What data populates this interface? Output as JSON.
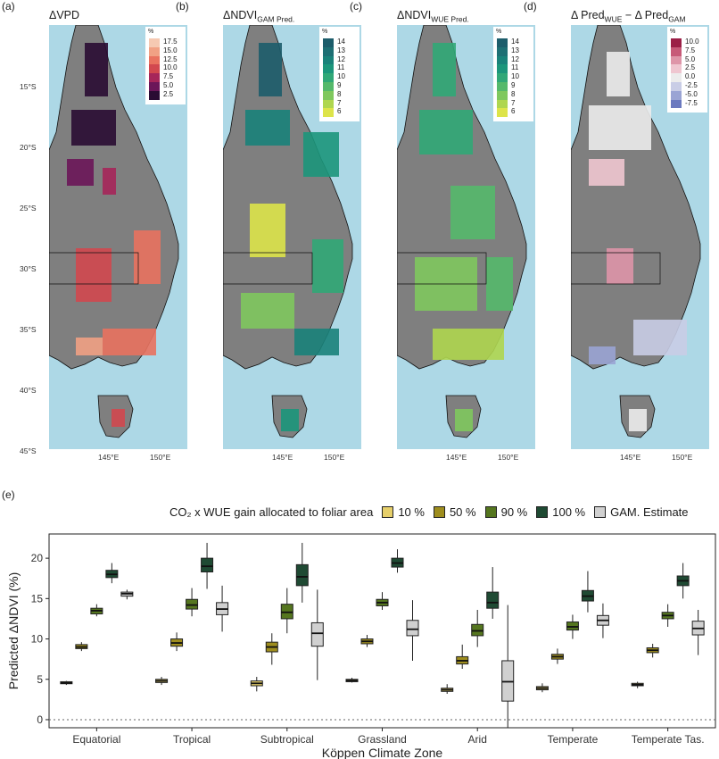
{
  "maps": [
    {
      "panel_label": "(a)",
      "title": "ΔVPD",
      "title_sub": "",
      "legend_unit": "%",
      "legend_labels": [
        "17.5",
        "15.0",
        "12.5",
        "10.0",
        "7.5",
        "5.0",
        "2.5"
      ],
      "legend_colors": [
        "#f6c9b2",
        "#f1a184",
        "#e9725f",
        "#d2484f",
        "#a6265a",
        "#6b1659",
        "#2a0c33"
      ],
      "lat_ticks": [
        "15°S",
        "20°S",
        "25°S",
        "30°S",
        "35°S",
        "40°S",
        "45°S"
      ],
      "lon_ticks": [
        "145°E",
        "150°E"
      ]
    },
    {
      "panel_label": "(b)",
      "title": "ΔNDVI",
      "title_sub": "GAM Pred.",
      "legend_unit": "%",
      "legend_labels": [
        "14",
        "13",
        "12",
        "11",
        "10",
        "9",
        "8",
        "7",
        "6"
      ],
      "legend_colors": [
        "#1d5d6b",
        "#1e6f74",
        "#1a827a",
        "#1c967b",
        "#31a877",
        "#55b96b",
        "#7fc85e",
        "#afd64f",
        "#dde44a"
      ],
      "lon_ticks": [
        "145°E",
        "150°E"
      ]
    },
    {
      "panel_label": "(c)",
      "title": "ΔNDVI",
      "title_sub": "WUE Pred.",
      "legend_unit": "%",
      "legend_labels": [
        "14",
        "13",
        "12",
        "11",
        "10",
        "9",
        "8",
        "7",
        "6"
      ],
      "legend_colors": [
        "#1d5d6b",
        "#1e6f74",
        "#1a827a",
        "#1c967b",
        "#31a877",
        "#55b96b",
        "#7fc85e",
        "#afd64f",
        "#dde44a"
      ],
      "lon_ticks": [
        "145°E",
        "150°E"
      ]
    },
    {
      "panel_label": "(d)",
      "title": "Δ Pred",
      "title_sub": "WUE",
      "title_mid": " − Δ Pred",
      "title_sub2": "GAM",
      "legend_unit": "%",
      "legend_labels": [
        "10.0",
        "7.5",
        "5.0",
        "2.5",
        "0.0",
        "-2.5",
        "-5.0",
        "-7.5"
      ],
      "legend_colors": [
        "#9b1f46",
        "#c75a78",
        "#de95a8",
        "#efc6d0",
        "#ececec",
        "#c9cde6",
        "#9aa4d4",
        "#6b79bf"
      ],
      "lon_ticks": [
        "145°E",
        "150°E"
      ]
    }
  ],
  "colors": {
    "ocean": "#add8e6",
    "land_gray": "#7f7f7f",
    "pct_10": "#e6cf6a",
    "pct_50": "#9e8d1e",
    "pct_90": "#55761f",
    "pct_100": "#1f4a33",
    "gam": "#d0d0d0"
  },
  "bottom_panel": {
    "panel_label": "(e)",
    "legend_title": "CO₂ x WUE gain allocated to foliar area",
    "legend_items": [
      {
        "label": "10 %",
        "color": "#e6cf6a"
      },
      {
        "label": "50 %",
        "color": "#9e8d1e"
      },
      {
        "label": "90 %",
        "color": "#55761f"
      },
      {
        "label": "100 %",
        "color": "#1f4a33"
      },
      {
        "label": "GAM. Estimate",
        "color": "#d0d0d0"
      }
    ]
  },
  "chart_data": {
    "type": "boxplot",
    "categories": [
      "Equatorial",
      "Tropical",
      "Subtropical",
      "Grassland",
      "Arid",
      "Temperate",
      "Temperate Tas."
    ],
    "xlabel": "Köppen Climate Zone",
    "ylabel": "Predicted ΔNDVI (%)",
    "ylim": [
      -1,
      23
    ],
    "yticks": [
      0,
      5,
      10,
      15,
      20
    ],
    "reference_line": 0,
    "series": [
      {
        "name": "10 %",
        "color": "#e6cf6a",
        "boxes": [
          {
            "min": 4.3,
            "q1": 4.45,
            "median": 4.55,
            "q3": 4.7,
            "max": 4.8
          },
          {
            "min": 4.3,
            "q1": 4.6,
            "median": 4.8,
            "q3": 5.0,
            "max": 5.3
          },
          {
            "min": 3.5,
            "q1": 4.2,
            "median": 4.5,
            "q3": 4.8,
            "max": 5.3
          },
          {
            "min": 4.6,
            "q1": 4.7,
            "median": 4.85,
            "q3": 5.0,
            "max": 5.2
          },
          {
            "min": 3.2,
            "q1": 3.5,
            "median": 3.7,
            "q3": 3.9,
            "max": 4.4
          },
          {
            "min": 3.4,
            "q1": 3.7,
            "median": 3.9,
            "q3": 4.1,
            "max": 4.5
          },
          {
            "min": 3.9,
            "q1": 4.2,
            "median": 4.35,
            "q3": 4.5,
            "max": 4.7
          }
        ]
      },
      {
        "name": "50 %",
        "color": "#9e8d1e",
        "boxes": [
          {
            "min": 8.5,
            "q1": 8.8,
            "median": 9.0,
            "q3": 9.3,
            "max": 9.6
          },
          {
            "min": 8.5,
            "q1": 9.1,
            "median": 9.5,
            "q3": 10.0,
            "max": 10.8
          },
          {
            "min": 6.8,
            "q1": 8.4,
            "median": 9.0,
            "q3": 9.6,
            "max": 10.7
          },
          {
            "min": 9.0,
            "q1": 9.4,
            "median": 9.7,
            "q3": 10.0,
            "max": 10.5
          },
          {
            "min": 6.3,
            "q1": 6.9,
            "median": 7.3,
            "q3": 7.8,
            "max": 9.3
          },
          {
            "min": 6.9,
            "q1": 7.5,
            "median": 7.8,
            "q3": 8.1,
            "max": 8.8
          },
          {
            "min": 7.7,
            "q1": 8.3,
            "median": 8.6,
            "q3": 8.9,
            "max": 9.4
          }
        ]
      },
      {
        "name": "90 %",
        "color": "#55761f",
        "boxes": [
          {
            "min": 12.8,
            "q1": 13.1,
            "median": 13.5,
            "q3": 13.8,
            "max": 14.3
          },
          {
            "min": 12.8,
            "q1": 13.7,
            "median": 14.2,
            "q3": 14.9,
            "max": 16.3
          },
          {
            "min": 10.7,
            "q1": 12.5,
            "median": 13.3,
            "q3": 14.3,
            "max": 16.3
          },
          {
            "min": 13.6,
            "q1": 14.1,
            "median": 14.5,
            "q3": 14.9,
            "max": 15.8
          },
          {
            "min": 9.0,
            "q1": 10.4,
            "median": 11.0,
            "q3": 11.8,
            "max": 13.6
          },
          {
            "min": 10.0,
            "q1": 11.1,
            "median": 11.5,
            "q3": 12.1,
            "max": 13.0
          },
          {
            "min": 11.5,
            "q1": 12.5,
            "median": 12.9,
            "q3": 13.3,
            "max": 14.3
          }
        ]
      },
      {
        "name": "100 %",
        "color": "#1f4a33",
        "boxes": [
          {
            "min": 16.9,
            "q1": 17.6,
            "median": 18.0,
            "q3": 18.5,
            "max": 19.4
          },
          {
            "min": 16.2,
            "q1": 18.3,
            "median": 19.0,
            "q3": 20.0,
            "max": 21.9
          },
          {
            "min": 14.5,
            "q1": 16.6,
            "median": 17.7,
            "q3": 19.2,
            "max": 21.9
          },
          {
            "min": 18.2,
            "q1": 18.9,
            "median": 19.4,
            "q3": 20.0,
            "max": 21.1
          },
          {
            "min": 12.5,
            "q1": 13.8,
            "median": 14.5,
            "q3": 15.8,
            "max": 18.9
          },
          {
            "min": 13.3,
            "q1": 14.7,
            "median": 15.3,
            "q3": 16.0,
            "max": 18.4
          },
          {
            "min": 15.0,
            "q1": 16.6,
            "median": 17.2,
            "q3": 17.8,
            "max": 19.4
          }
        ]
      },
      {
        "name": "GAM. Estimate",
        "color": "#d0d0d0",
        "boxes": [
          {
            "min": 14.9,
            "q1": 15.3,
            "median": 15.6,
            "q3": 15.8,
            "max": 16.1
          },
          {
            "min": 10.9,
            "q1": 13.0,
            "median": 13.7,
            "q3": 14.5,
            "max": 16.6
          },
          {
            "min": 4.9,
            "q1": 9.1,
            "median": 10.7,
            "q3": 12.0,
            "max": 16.1
          },
          {
            "min": 7.3,
            "q1": 10.4,
            "median": 11.2,
            "q3": 12.3,
            "max": 14.8
          },
          {
            "min": -1.0,
            "q1": 2.3,
            "median": 4.7,
            "q3": 7.3,
            "max": 14.2
          },
          {
            "min": 10.1,
            "q1": 11.7,
            "median": 12.3,
            "q3": 12.9,
            "max": 14.4
          },
          {
            "min": 8.0,
            "q1": 10.5,
            "median": 11.3,
            "q3": 12.2,
            "max": 13.6
          }
        ]
      }
    ]
  }
}
